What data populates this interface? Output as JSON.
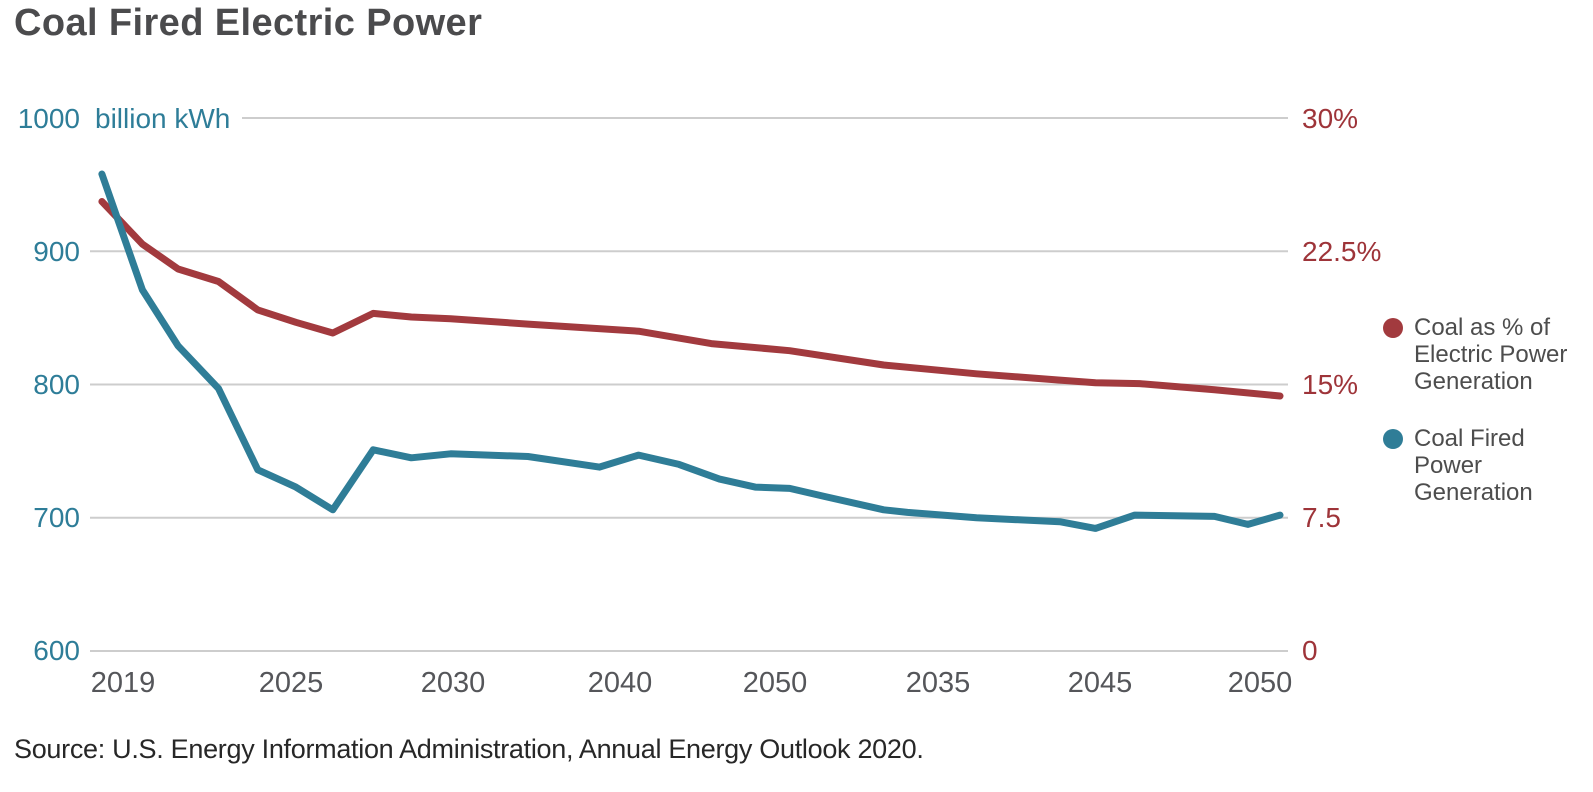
{
  "title": "Coal Fired Electric Power",
  "source": "Source: U.S. Energy Information Administration, Annual Energy Outlook 2020.",
  "colors": {
    "series_share_red": "#A23A3E",
    "series_generation_blue": "#2F7D97",
    "left_axis_text": "#2E7D98",
    "right_axis_text": "#9E3439",
    "x_axis_text": "#55565A",
    "title_text": "#4B4B4D",
    "legend_text": "#4D4D4D",
    "gridline": "#CDCDCD",
    "background": "#FFFFFF"
  },
  "legend": {
    "items": [
      {
        "label": "Coal as % of\nElectric Power\nGeneration",
        "color": "#A23A3E"
      },
      {
        "label": "Coal Fired\nPower\nGeneration",
        "color": "#2F7D97"
      }
    ]
  },
  "chart_data": {
    "type": "line",
    "title": "Coal Fired Electric Power",
    "grid": "horizontal gridlines on, vertical off",
    "legend_position": "right",
    "x_tick_labels": [
      "2019",
      "2025",
      "2030",
      "2040",
      "2050",
      "2035",
      "2045",
      "2050"
    ],
    "left_axis": {
      "unit_label": "billion kWh",
      "ticks": [
        "1000",
        "900",
        "800",
        "700",
        "600"
      ],
      "range": [
        600,
        1000
      ],
      "color": "#2E7D98"
    },
    "right_axis": {
      "ticks": [
        "30%",
        "22.5%",
        "15%",
        "7.5",
        "0"
      ],
      "range": [
        0,
        30
      ],
      "color": "#9E3439"
    },
    "series": [
      {
        "name": "Coal as % of Electric Power Generation",
        "axis": "right",
        "unit": "%",
        "color": "#A23A3E",
        "points": [
          [
            0.01,
            25.3
          ],
          [
            0.044,
            22.9
          ],
          [
            0.074,
            21.5
          ],
          [
            0.108,
            20.8
          ],
          [
            0.141,
            19.2
          ],
          [
            0.173,
            18.5
          ],
          [
            0.204,
            17.9
          ],
          [
            0.238,
            19.0
          ],
          [
            0.27,
            18.8
          ],
          [
            0.303,
            18.7
          ],
          [
            0.368,
            18.4
          ],
          [
            0.461,
            18.0
          ],
          [
            0.522,
            17.3
          ],
          [
            0.588,
            16.9
          ],
          [
            0.667,
            16.1
          ],
          [
            0.745,
            15.6
          ],
          [
            0.815,
            15.25
          ],
          [
            0.845,
            15.1
          ],
          [
            0.882,
            15.05
          ],
          [
            0.945,
            14.7
          ],
          [
            1.0,
            14.35
          ]
        ]
      },
      {
        "name": "Coal Fired Power Generation",
        "axis": "left",
        "unit": "billion kWh",
        "color": "#2F7D97",
        "points": [
          [
            0.01,
            958
          ],
          [
            0.044,
            871
          ],
          [
            0.074,
            829
          ],
          [
            0.108,
            797
          ],
          [
            0.141,
            736
          ],
          [
            0.173,
            723
          ],
          [
            0.204,
            706
          ],
          [
            0.238,
            751
          ],
          [
            0.27,
            745
          ],
          [
            0.303,
            748
          ],
          [
            0.368,
            746
          ],
          [
            0.428,
            738
          ],
          [
            0.461,
            747
          ],
          [
            0.495,
            740
          ],
          [
            0.529,
            729
          ],
          [
            0.559,
            723
          ],
          [
            0.588,
            722
          ],
          [
            0.617,
            716
          ],
          [
            0.667,
            706
          ],
          [
            0.687,
            704
          ],
          [
            0.745,
            700
          ],
          [
            0.815,
            697
          ],
          [
            0.845,
            692
          ],
          [
            0.878,
            702
          ],
          [
            0.945,
            701
          ],
          [
            0.973,
            695
          ],
          [
            1.0,
            702
          ]
        ]
      }
    ]
  }
}
